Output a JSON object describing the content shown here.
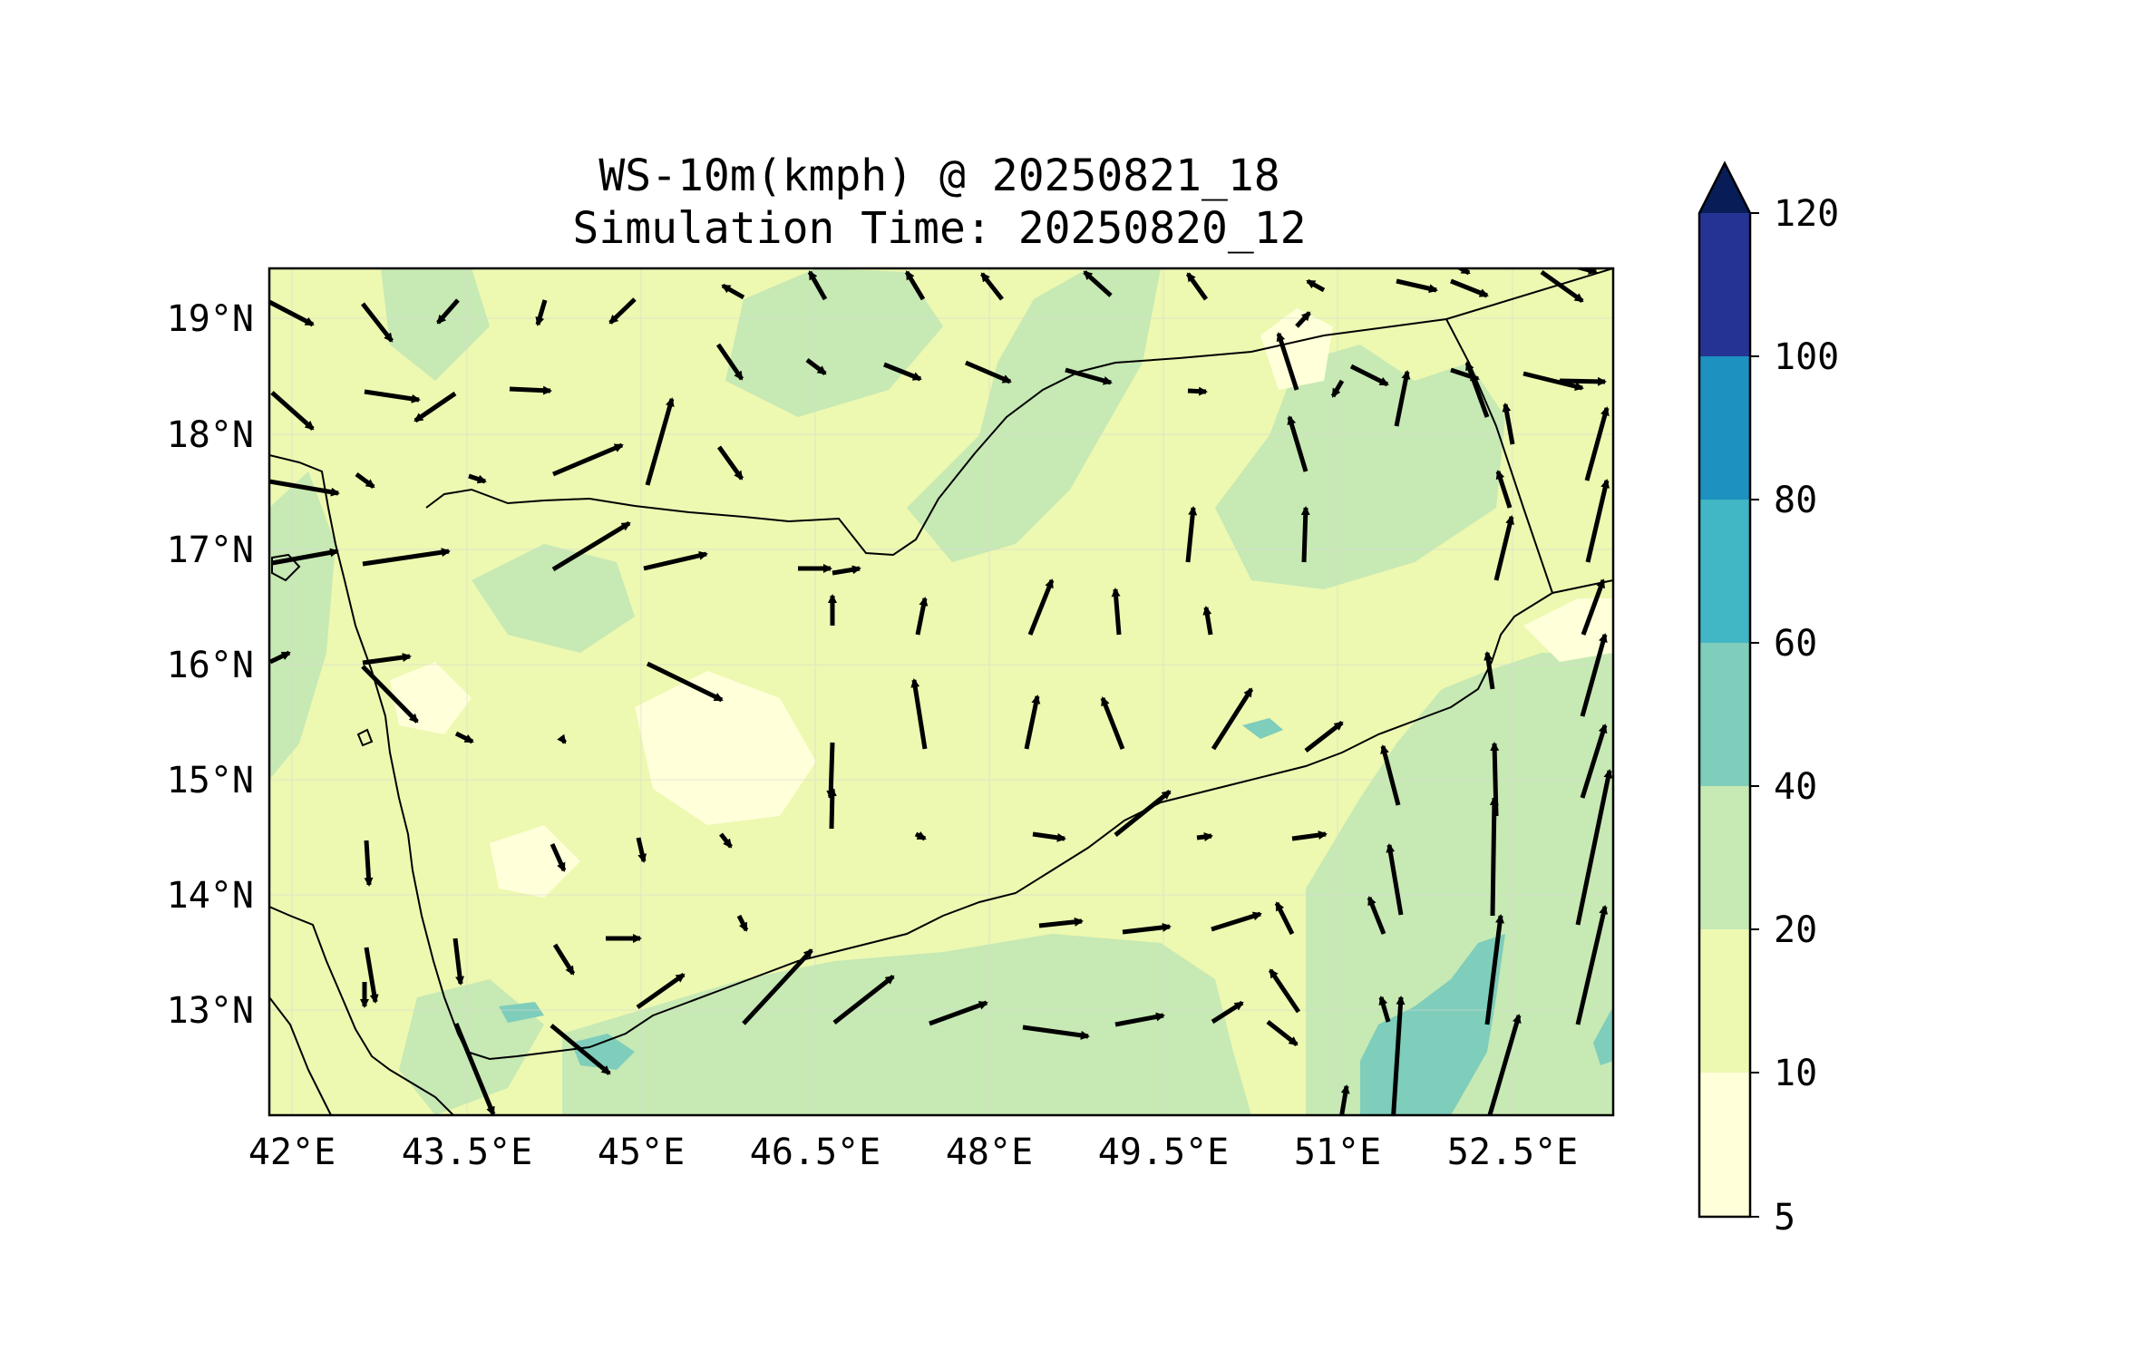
{
  "title_line1": "WS-10m(kmph) @ 20250821_18",
  "title_line2": "Simulation Time: 20250820_12",
  "x_ticks": [
    "42°E",
    "43.5°E",
    "45°E",
    "46.5°E",
    "48°E",
    "49.5°E",
    "51°E",
    "52.5°E"
  ],
  "y_ticks": [
    "19°N",
    "18°N",
    "17°N",
    "16°N",
    "15°N",
    "14°N",
    "13°N"
  ],
  "colorbar": {
    "ticks": [
      "5",
      "10",
      "20",
      "40",
      "60",
      "80",
      "100",
      "120"
    ],
    "colors": [
      "#ffffd9",
      "#edf8b1",
      "#c7e9b4",
      "#7fcdbb",
      "#41b6c4",
      "#1d91c0",
      "#225ea8",
      "#253494"
    ],
    "extend_color": "#081d58"
  },
  "chart_data": {
    "type": "map",
    "variable": "WS-10m(kmph)",
    "lon_range": [
      41.9,
      53.7
    ],
    "lat_range": [
      12.1,
      19.45
    ],
    "x_tick_values": [
      42,
      43.5,
      45,
      46.5,
      48,
      49.5,
      51,
      52.5
    ],
    "y_tick_values": [
      19,
      18,
      17,
      16,
      15,
      14,
      13
    ],
    "levels": [
      5,
      10,
      20,
      40,
      60,
      80,
      100,
      120
    ],
    "extend": "max"
  }
}
